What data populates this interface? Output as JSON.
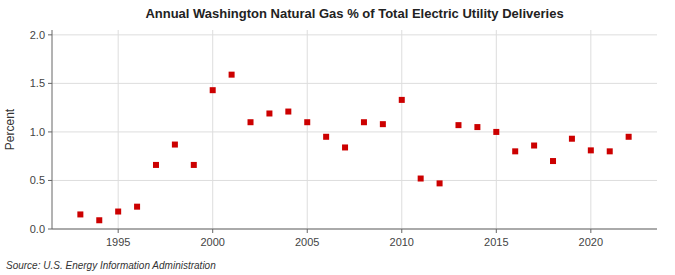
{
  "chart_data": {
    "type": "scatter",
    "title": "Annual Washington Natural Gas % of Total Electric Utility Deliveries",
    "ylabel": "Percent",
    "annotations": [
      "Source: U.S. Energy Information Administration"
    ],
    "x": [
      1993,
      1994,
      1995,
      1996,
      1997,
      1998,
      1999,
      2000,
      2001,
      2002,
      2003,
      2004,
      2005,
      2006,
      2007,
      2008,
      2009,
      2010,
      2011,
      2012,
      2013,
      2014,
      2015,
      2016,
      2017,
      2018,
      2019,
      2020,
      2021,
      2022
    ],
    "values": [
      0.15,
      0.09,
      0.18,
      0.23,
      0.66,
      0.87,
      0.66,
      1.43,
      1.59,
      1.1,
      1.19,
      1.21,
      1.1,
      0.95,
      0.84,
      1.1,
      1.08,
      1.33,
      0.52,
      0.47,
      1.07,
      1.05,
      1.0,
      0.8,
      0.86,
      0.7,
      0.93,
      0.81,
      0.8,
      0.95
    ],
    "color": "#cc0000",
    "marker": "square",
    "xlim": [
      1991.5,
      2023.5
    ],
    "ylim": [
      0.0,
      2.05
    ],
    "xticks": [
      1995,
      2000,
      2005,
      2010,
      2015,
      2020
    ],
    "yticks": [
      {
        "value": 0.0,
        "label": "0.0"
      },
      0.5,
      {
        "value": 1.0,
        "label": "1.0"
      },
      1.5,
      {
        "value": 2.0,
        "label": "2.0"
      }
    ],
    "grid": true
  }
}
